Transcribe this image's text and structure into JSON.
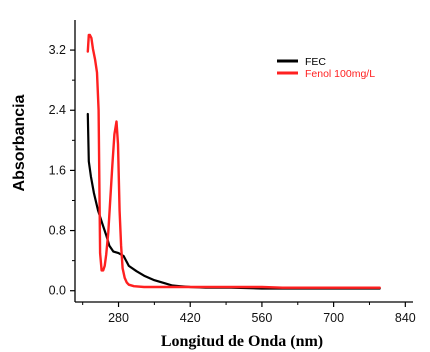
{
  "chart_data": {
    "type": "line",
    "xlabel": "Longitud de Onda (nm)",
    "ylabel": "Absorbancia",
    "xlim": [
      195,
      855
    ],
    "ylim": [
      -0.15,
      3.6
    ],
    "x_ticks": [
      280,
      420,
      560,
      700,
      840
    ],
    "y_ticks": [
      0.0,
      0.8,
      1.6,
      2.4,
      3.2
    ],
    "x_tick_labels": [
      "280",
      "420",
      "560",
      "700",
      "840"
    ],
    "y_tick_labels": [
      "0.0",
      "0.8",
      "1.6",
      "2.4",
      "3.2"
    ],
    "legend_position": "top-right",
    "grid": false,
    "series": [
      {
        "name": "FEC",
        "color": "#000000",
        "x": [
          220,
          222,
          226,
          232,
          240,
          248,
          256,
          262,
          270,
          280,
          290,
          300,
          315,
          330,
          350,
          370,
          385,
          400,
          420,
          450,
          500,
          560,
          620,
          680,
          740,
          790
        ],
        "y": [
          2.35,
          1.72,
          1.52,
          1.3,
          1.07,
          0.9,
          0.74,
          0.6,
          0.52,
          0.5,
          0.46,
          0.33,
          0.26,
          0.2,
          0.14,
          0.1,
          0.07,
          0.06,
          0.05,
          0.04,
          0.04,
          0.03,
          0.03,
          0.03,
          0.03,
          0.03
        ]
      },
      {
        "name": "Fenol 100mg/L",
        "color": "#ff2020",
        "x": [
          220,
          222,
          224,
          227,
          230,
          234,
          238,
          241,
          244,
          247,
          250,
          253,
          256,
          260,
          264,
          268,
          272,
          276,
          279,
          282,
          285,
          288,
          292,
          296,
          300,
          310,
          330,
          360,
          400,
          450,
          500,
          560,
          600,
          650,
          700,
          750,
          790
        ],
        "y": [
          3.18,
          3.4,
          3.4,
          3.36,
          3.22,
          3.08,
          2.9,
          2.4,
          0.5,
          0.27,
          0.27,
          0.33,
          0.48,
          0.78,
          1.22,
          1.68,
          2.08,
          2.25,
          1.95,
          1.06,
          0.6,
          0.3,
          0.17,
          0.11,
          0.08,
          0.06,
          0.05,
          0.05,
          0.05,
          0.05,
          0.05,
          0.05,
          0.04,
          0.04,
          0.04,
          0.04,
          0.04
        ]
      }
    ]
  }
}
